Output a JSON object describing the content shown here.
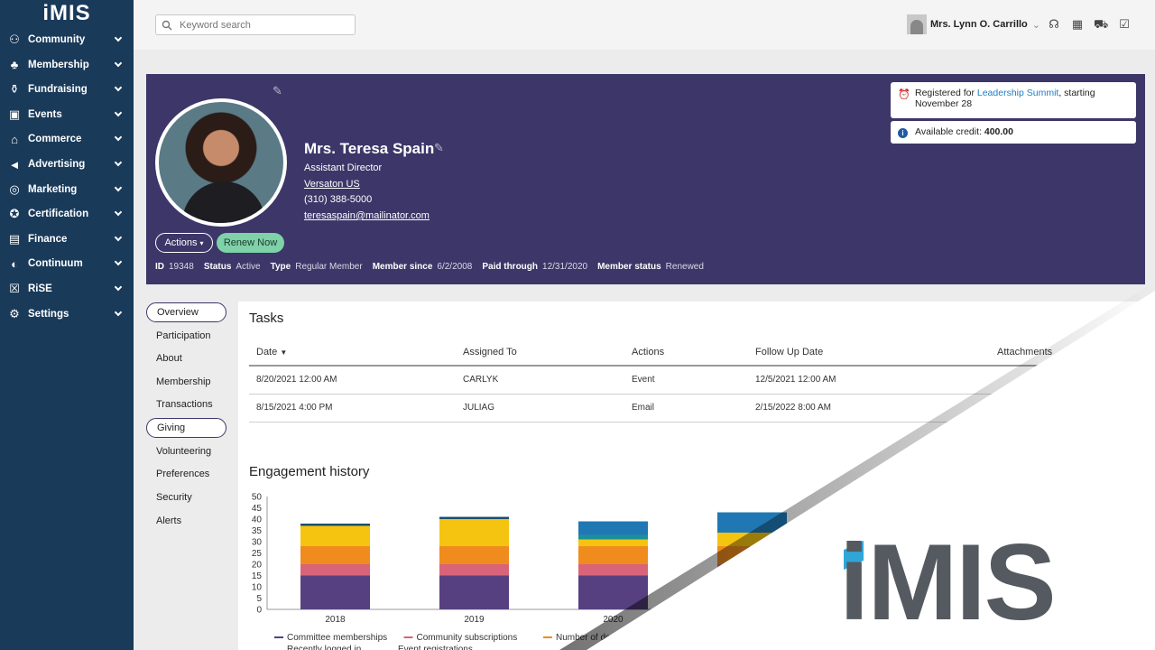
{
  "sidebar": {
    "logo": "iMIS",
    "items": [
      {
        "label": "Community",
        "icon": "community-icon"
      },
      {
        "label": "Membership",
        "icon": "membership-icon"
      },
      {
        "label": "Fundraising",
        "icon": "fundraising-icon"
      },
      {
        "label": "Events",
        "icon": "calendar-icon"
      },
      {
        "label": "Commerce",
        "icon": "commerce-icon"
      },
      {
        "label": "Advertising",
        "icon": "megaphone-icon"
      },
      {
        "label": "Marketing",
        "icon": "target-icon"
      },
      {
        "label": "Certification",
        "icon": "badge-icon"
      },
      {
        "label": "Finance",
        "icon": "finance-icon"
      },
      {
        "label": "Continuum",
        "icon": "globe-icon"
      },
      {
        "label": "RiSE",
        "icon": "rise-icon"
      },
      {
        "label": "Settings",
        "icon": "gear-icon"
      }
    ]
  },
  "topbar": {
    "search_placeholder": "Keyword search",
    "user_name": "Mrs. Lynn O. Carrillo"
  },
  "profile": {
    "name": "Mrs. Teresa Spain",
    "title": "Assistant Director",
    "company": "Versaton US",
    "phone": "(310) 388-5000",
    "email": "teresaspain@mailinator.com",
    "actions_label": "Actions",
    "renew_label": "Renew Now",
    "meta": {
      "id_label": "ID",
      "id": "19348",
      "status_label": "Status",
      "status": "Active",
      "type_label": "Type",
      "type": "Regular Member",
      "since_label": "Member since",
      "since": "6/2/2008",
      "paid_label": "Paid through",
      "paid": "12/31/2020",
      "mstatus_label": "Member status",
      "mstatus": "Renewed"
    },
    "event_card": {
      "prefix": "Registered for",
      "event": "Leadership Summit",
      "suffix": ", starting",
      "date": "November 28"
    },
    "credit_card": {
      "label": "Available credit:",
      "value": "400.00"
    }
  },
  "left_nav": [
    "Overview",
    "Participation",
    "About",
    "Membership",
    "Transactions",
    "Giving",
    "Volunteering",
    "Preferences",
    "Security",
    "Alerts"
  ],
  "tasks": {
    "title": "Tasks",
    "columns": [
      "Date",
      "Assigned To",
      "Actions",
      "Follow Up Date",
      "Attachments"
    ],
    "rows": [
      [
        "8/20/2021 12:00 AM",
        "CARLYK",
        "Event",
        "12/5/2021 12:00 AM"
      ],
      [
        "8/15/2021 4:00 PM",
        "JULIAG",
        "Email",
        "2/15/2022 8:00 AM"
      ]
    ]
  },
  "engagement": {
    "title": "Engagement history"
  },
  "chart_data": {
    "type": "bar",
    "stacked": true,
    "categories": [
      "2018",
      "2019",
      "2020",
      ""
    ],
    "ylim": [
      0,
      50
    ],
    "yticks": [
      0,
      5,
      10,
      15,
      20,
      25,
      30,
      35,
      40,
      45,
      50
    ],
    "series": [
      {
        "name": "Committee memberships",
        "color": "#574080",
        "values": [
          15,
          15,
          15,
          15
        ]
      },
      {
        "name": "Community subscriptions",
        "color": "#d9647a",
        "values": [
          5,
          5,
          5,
          5
        ]
      },
      {
        "name": "Number of do",
        "color": "#f08c1e",
        "values": [
          8,
          8,
          8,
          8
        ]
      },
      {
        "name": "",
        "color": "#f5c410",
        "values": [
          9,
          12,
          3,
          6
        ]
      },
      {
        "name": "",
        "color": "#1d8f9a",
        "values": [
          0,
          0,
          2,
          0
        ]
      },
      {
        "name": "",
        "color": "#1f78b4",
        "values": [
          0,
          0,
          6,
          9
        ]
      },
      {
        "name": "",
        "color": "#1d4f6a",
        "values": [
          1,
          1,
          0,
          0
        ]
      }
    ],
    "legend_line2": [
      "Recently logged in",
      "Event registrations"
    ],
    "legend_placement": "bottom"
  },
  "brand": {
    "logo_text": "iMIS",
    "accent": "#2fa6d8",
    "header_bg": "#3d3668",
    "sidebar_bg": "#1a3a5a"
  }
}
